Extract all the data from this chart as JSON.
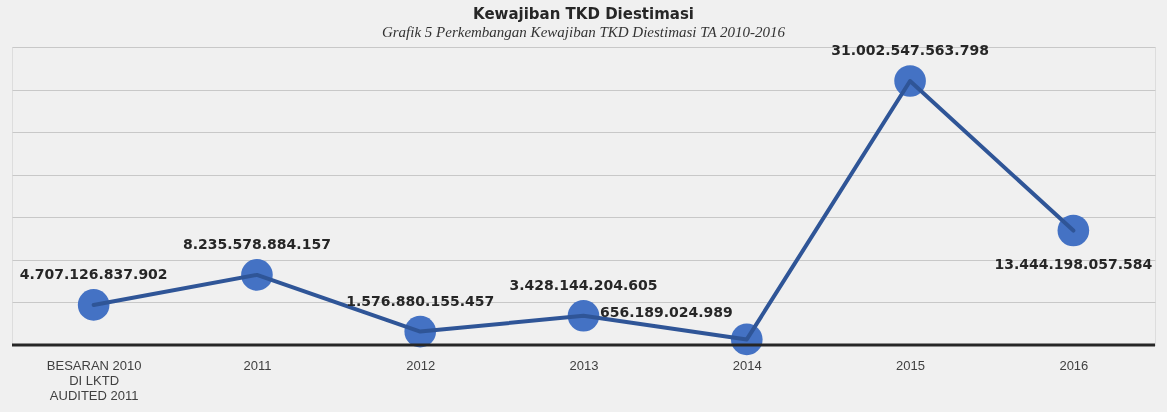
{
  "chart_data": {
    "type": "line",
    "title": "Kewajiban TKD Diestimasi",
    "annotations": [
      "Grafik 5 Perkembangan Kewajiban TKD Diestimasi TA 2010-2016"
    ],
    "categories": [
      "BESARAN 2010 DI LKTD AUDITED 2011",
      "2011",
      "2012",
      "2013",
      "2014",
      "2015",
      "2016"
    ],
    "series": [
      {
        "color": "#4472c4",
        "values": [
          4707126837902,
          8235578884157,
          1576880155457,
          3428144204605,
          656189024989,
          31002547563798,
          13444198057584
        ],
        "value_labels": [
          "4.707.126.837.902",
          "8.235.578.884.157",
          "1.576.880.155.457",
          "3.428.144.204.605",
          "656.189.024.989",
          "31.002.547.563.798",
          "13.444.198.057.584"
        ]
      }
    ],
    "grid": "y",
    "marker": "circle",
    "line_style": "solid",
    "tick_labels": "x"
  }
}
